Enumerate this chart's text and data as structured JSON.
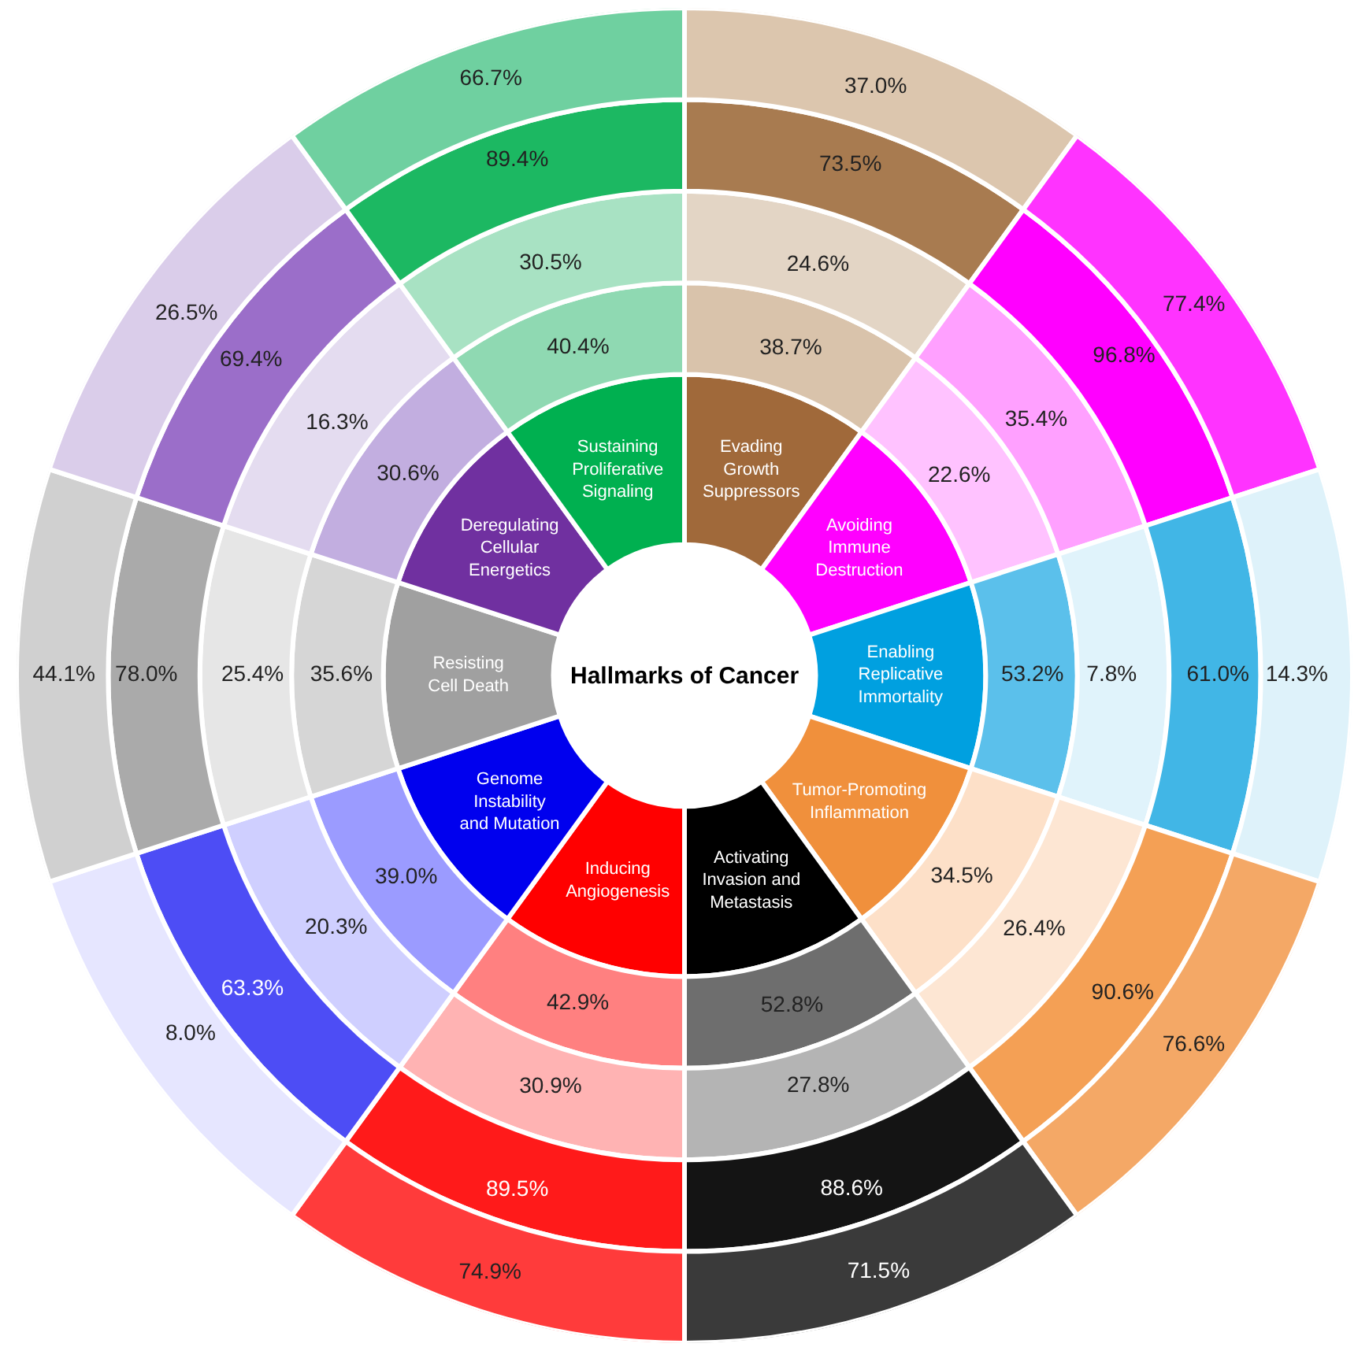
{
  "chart_data": {
    "type": "other",
    "title": "Hallmarks of Cancer",
    "categories": [
      "Evading Growth Suppressors",
      "Avoiding Immune Destruction",
      "Enabling Replicative Immortality",
      "Tumor-Promoting Inflammation",
      "Activating Invasion and Metastasis",
      "Inducing Angiogenesis",
      "Genome Instability and Mutation",
      "Resisting Cell Death",
      "Deregulating Cellular Energetics",
      "Sustaining Proliferative Signaling"
    ],
    "colors": [
      "#a0693a",
      "#ff00ff",
      "#00a0e0",
      "#f0903c",
      "#000000",
      "#ff0000",
      "#0000ee",
      "#a0a0a0",
      "#7030a0",
      "#00b050"
    ],
    "series": [
      {
        "values": [
          38.7,
          22.6,
          53.2,
          34.5,
          52.8,
          42.9,
          39.0,
          35.6,
          30.6,
          40.4
        ],
        "value_labels": [
          "38.7%",
          "22.6%",
          "53.2%",
          "34.5%",
          "52.8%",
          "42.9%",
          "39.0%",
          "35.6%",
          "30.6%",
          "40.4%"
        ],
        "colors": [
          "#d9c3ab",
          "#ffc2ff",
          "#5bc0eb",
          "#fde0c8",
          "#6e6e6e",
          "#ff8080",
          "#9b9bff",
          "#d6d6d6",
          "#c2aee0",
          "#8fd9b2"
        ]
      },
      {
        "values": [
          24.6,
          35.4,
          7.8,
          26.4,
          27.8,
          30.9,
          20.3,
          25.4,
          16.3,
          30.5
        ],
        "value_labels": [
          "24.6%",
          "35.4%",
          "7.8%",
          "26.4%",
          "27.8%",
          "30.9%",
          "20.3%",
          "25.4%",
          "16.3%",
          "30.5%"
        ],
        "colors": [
          "#e3d5c5",
          "#ffa0ff",
          "#e0f3fb",
          "#fde6d3",
          "#b4b4b4",
          "#ffb3b3",
          "#cfcfff",
          "#e6e6e6",
          "#e4dcf0",
          "#a8e2c3"
        ]
      },
      {
        "values": [
          73.5,
          96.8,
          61.0,
          90.6,
          88.6,
          89.5,
          63.3,
          78.0,
          69.4,
          89.4
        ],
        "value_labels": [
          "73.5%",
          "96.8%",
          "61.0%",
          "90.6%",
          "88.6%",
          "89.5%",
          "63.3%",
          "78.0%",
          "69.4%",
          "89.4%"
        ],
        "colors": [
          "#a87b50",
          "#ff00ff",
          "#41b6e6",
          "#f4a055",
          "#141414",
          "#ff1a1a",
          "#4d4df5",
          "#aaaaaa",
          "#9b6ec9",
          "#1cb862"
        ]
      },
      {
        "values": [
          37.0,
          77.4,
          14.3,
          76.6,
          71.5,
          74.9,
          8.0,
          44.1,
          26.5,
          66.7
        ],
        "value_labels": [
          "37.0%",
          "77.4%",
          "14.3%",
          "76.6%",
          "71.5%",
          "74.9%",
          "8.0%",
          "44.1%",
          "26.5%",
          "66.7%"
        ],
        "colors": [
          "#dcc6ae",
          "#ff33ff",
          "#def2fa",
          "#f4a866",
          "#3a3a3a",
          "#ff3b3b",
          "#e6e6ff",
          "#d0d0d0",
          "#dacdea",
          "#6fd0a0"
        ]
      }
    ]
  }
}
